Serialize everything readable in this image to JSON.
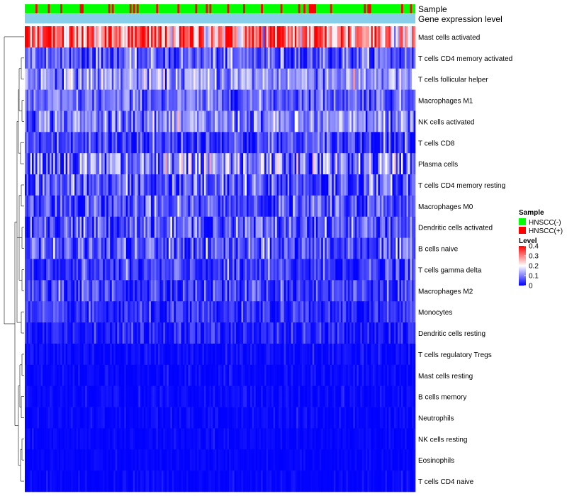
{
  "chart_data": {
    "type": "heatmap",
    "title": "",
    "annotation_tracks": [
      {
        "name": "Sample",
        "label": "Sample"
      },
      {
        "name": "Gene expression level",
        "label": "Gene expression level",
        "color": "#87ceeb"
      }
    ],
    "rows": [
      {
        "name": "Mast cells activated",
        "mean": 0.3,
        "sd": 0.1
      },
      {
        "name": "T cells CD4 memory activated",
        "mean": 0.07,
        "sd": 0.05
      },
      {
        "name": "T cells follicular helper",
        "mean": 0.12,
        "sd": 0.05
      },
      {
        "name": "Macrophages M1",
        "mean": 0.08,
        "sd": 0.04
      },
      {
        "name": "NK cells activated",
        "mean": 0.1,
        "sd": 0.05
      },
      {
        "name": "T cells CD8",
        "mean": 0.05,
        "sd": 0.05
      },
      {
        "name": "Plasma cells",
        "mean": 0.09,
        "sd": 0.08
      },
      {
        "name": "T cells CD4 memory resting",
        "mean": 0.06,
        "sd": 0.06
      },
      {
        "name": "Macrophages M0",
        "mean": 0.06,
        "sd": 0.05
      },
      {
        "name": "Dendritic cells activated",
        "mean": 0.07,
        "sd": 0.05
      },
      {
        "name": "B cells naive",
        "mean": 0.06,
        "sd": 0.05
      },
      {
        "name": "T cells gamma delta",
        "mean": 0.04,
        "sd": 0.04
      },
      {
        "name": "Macrophages M2",
        "mean": 0.05,
        "sd": 0.04
      },
      {
        "name": "Monocytes",
        "mean": 0.03,
        "sd": 0.03
      },
      {
        "name": "Dendritic cells resting",
        "mean": 0.025,
        "sd": 0.03
      },
      {
        "name": "T cells regulatory  Tregs",
        "mean": 0.008,
        "sd": 0.015
      },
      {
        "name": "Mast cells resting",
        "mean": 0.005,
        "sd": 0.012
      },
      {
        "name": "B cells memory",
        "mean": 0.005,
        "sd": 0.012
      },
      {
        "name": "Neutrophils",
        "mean": 0.004,
        "sd": 0.01
      },
      {
        "name": "NK cells resting",
        "mean": 0.003,
        "sd": 0.008
      },
      {
        "name": "Eosinophils",
        "mean": 0.002,
        "sd": 0.006
      },
      {
        "name": "T cells CD4 naive",
        "mean": 0.003,
        "sd": 0.01
      }
    ],
    "n_samples": 220,
    "hnscc_positive_fraction": 0.2,
    "color_scale": {
      "min": 0,
      "max": 0.4,
      "stops": [
        {
          "value": 0,
          "color": "#0000ff"
        },
        {
          "value": 0.2,
          "color": "#ffffff"
        },
        {
          "value": 0.4,
          "color": "#ff0000"
        }
      ]
    },
    "legend": {
      "sample_title": "Sample",
      "sample_entries": [
        {
          "label": "HNSCC(-)",
          "color": "#00ff00"
        },
        {
          "label": "HNSCC(+)",
          "color": "#ff0000"
        }
      ],
      "level_title": "Level",
      "level_ticks": [
        "0.4",
        "0.3",
        "0.2",
        "0.1",
        "0"
      ]
    }
  }
}
